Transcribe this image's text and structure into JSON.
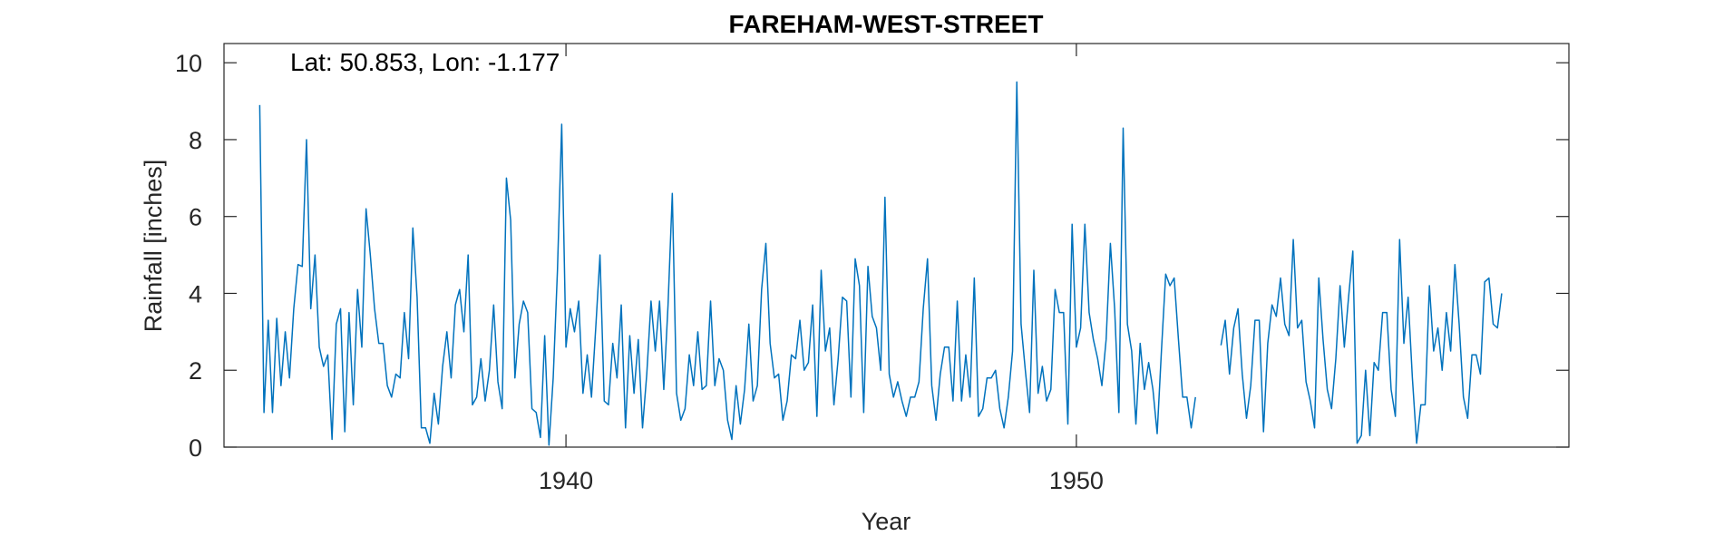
{
  "chart_data": {
    "type": "line",
    "title": "FAREHAM-WEST-STREET",
    "annotation": "Lat: 50.853, Lon: -1.177",
    "xlabel": "Year",
    "ylabel": "Rainfall [inches]",
    "xlim": [
      1933.3,
      1959.65
    ],
    "ylim": [
      0,
      10.5
    ],
    "xticks": [
      1940,
      1950
    ],
    "xtick_labels": [
      "1940",
      "1950"
    ],
    "yticks": [
      0,
      2,
      4,
      6,
      8,
      10
    ],
    "ytick_labels": [
      "0",
      "2",
      "4",
      "6",
      "8",
      "10"
    ],
    "grid": false,
    "series": [
      {
        "name": "Rainfall",
        "color": "#0072BD",
        "x_start": 1934.0,
        "x_step": 0.08333333,
        "values": [
          8.9,
          0.9,
          3.3,
          0.9,
          3.35,
          1.6,
          3.0,
          1.8,
          3.6,
          4.75,
          4.7,
          8.0,
          3.6,
          5.0,
          2.6,
          2.1,
          2.4,
          0.2,
          3.2,
          3.6,
          0.4,
          3.5,
          1.1,
          4.1,
          2.6,
          6.2,
          5.0,
          3.6,
          2.7,
          2.7,
          1.6,
          1.3,
          1.9,
          1.8,
          3.5,
          2.3,
          5.7,
          3.9,
          0.5,
          0.5,
          0.1,
          1.4,
          0.6,
          2.1,
          3.0,
          1.8,
          3.7,
          4.1,
          3.0,
          5.0,
          1.1,
          1.3,
          2.3,
          1.2,
          2.0,
          3.7,
          1.7,
          1.0,
          7.0,
          5.9,
          1.8,
          3.2,
          3.8,
          3.5,
          1.0,
          0.9,
          0.25,
          2.9,
          0.05,
          1.8,
          4.6,
          8.4,
          2.6,
          3.6,
          3.0,
          3.8,
          1.4,
          2.4,
          1.3,
          3.1,
          5.0,
          1.2,
          1.1,
          2.7,
          1.8,
          3.7,
          0.5,
          2.9,
          1.4,
          2.8,
          0.5,
          1.9,
          3.8,
          2.5,
          3.8,
          1.5,
          3.7,
          6.6,
          1.4,
          0.7,
          1.0,
          2.4,
          1.6,
          3.0,
          1.5,
          1.6,
          3.8,
          1.6,
          2.3,
          2.0,
          0.7,
          0.2,
          1.6,
          0.6,
          1.5,
          3.2,
          1.2,
          1.6,
          4.1,
          5.3,
          2.7,
          1.8,
          1.9,
          0.7,
          1.2,
          2.4,
          2.3,
          3.3,
          2.0,
          2.2,
          3.7,
          0.8,
          4.6,
          2.5,
          3.1,
          1.1,
          2.3,
          3.9,
          3.8,
          1.3,
          4.9,
          4.2,
          0.9,
          4.7,
          3.4,
          3.1,
          2.0,
          6.5,
          1.9,
          1.3,
          1.7,
          1.2,
          0.8,
          1.3,
          1.3,
          1.7,
          3.6,
          4.9,
          1.6,
          0.7,
          1.9,
          2.6,
          2.6,
          1.2,
          3.8,
          1.2,
          2.4,
          1.3,
          4.4,
          0.8,
          1.0,
          1.8,
          1.8,
          2.0,
          1.0,
          0.5,
          1.3,
          2.5,
          9.5,
          3.2,
          2.0,
          0.9,
          4.6,
          1.4,
          2.1,
          1.2,
          1.5,
          4.1,
          3.5,
          3.5,
          0.6,
          5.8,
          2.6,
          3.1,
          5.8,
          3.5,
          2.8,
          2.3,
          1.6,
          2.8,
          5.3,
          3.6,
          0.9,
          8.3,
          3.2,
          2.5,
          0.6,
          2.7,
          1.5,
          2.2,
          1.5,
          0.35,
          2.5,
          4.5,
          4.2,
          4.4,
          2.8,
          1.3,
          1.3,
          0.5,
          1.3,
          null,
          null,
          null,
          null,
          null,
          2.65,
          3.3,
          1.9,
          3.1,
          3.6,
          1.9,
          0.75,
          1.6,
          3.3,
          3.3,
          0.4,
          2.7,
          3.7,
          3.4,
          4.4,
          3.2,
          2.9,
          5.4,
          3.1,
          3.3,
          1.7,
          1.2,
          0.5,
          4.4,
          2.8,
          1.5,
          1.0,
          2.3,
          4.2,
          2.6,
          3.9,
          5.1,
          0.1,
          0.3,
          2.0,
          0.3,
          2.2,
          2.0,
          3.5,
          3.5,
          1.5,
          0.8,
          5.4,
          2.7,
          3.9,
          1.8,
          0.1,
          1.1,
          1.1,
          4.2,
          2.5,
          3.1,
          2.0,
          3.5,
          2.5,
          4.75,
          3.2,
          1.3,
          0.75,
          2.4,
          2.4,
          1.9,
          4.3,
          4.4,
          3.2,
          3.1,
          4.0
        ]
      }
    ]
  }
}
